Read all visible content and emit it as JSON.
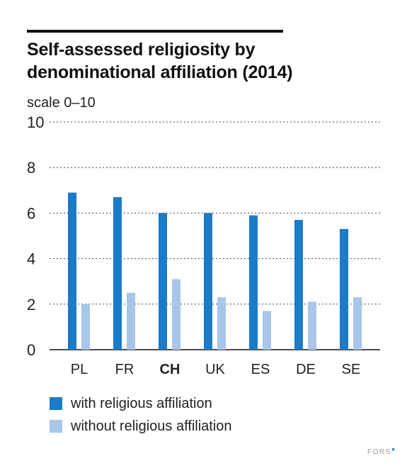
{
  "header": {
    "title_line1": "Self-assessed religiosity by",
    "title_line2": "denominational affiliation (2014)"
  },
  "chart_data": {
    "type": "bar",
    "title": "Self-assessed religiosity by denominational affiliation (2014)",
    "ylabel": "scale 0–10",
    "xlabel": "",
    "ylim": [
      0,
      10
    ],
    "yticks": [
      0,
      2,
      4,
      6,
      8,
      10
    ],
    "categories": [
      "PL",
      "FR",
      "CH",
      "UK",
      "ES",
      "DE",
      "SE"
    ],
    "highlight_category": "CH",
    "grid": "dashed horizontal",
    "legend_position": "bottom",
    "series": [
      {
        "name": "with religious affiliation",
        "color": "#1a7bc8",
        "values": [
          6.9,
          6.7,
          6.0,
          6.0,
          5.9,
          5.7,
          5.3
        ]
      },
      {
        "name": "without religious affiliation",
        "color": "#a7c6ea",
        "values": [
          2.0,
          2.5,
          3.1,
          2.3,
          1.7,
          2.1,
          2.3
        ]
      }
    ]
  },
  "footer": {
    "source": "FORS"
  }
}
